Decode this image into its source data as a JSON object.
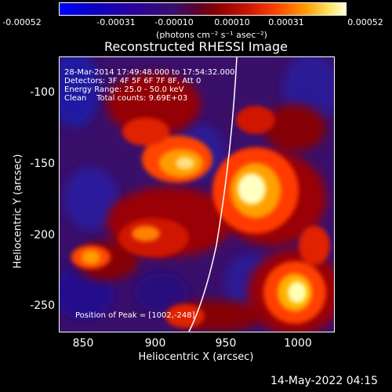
{
  "colorbar": {
    "ticks": [
      "-0.00052",
      "-0.00031",
      "-0.00010",
      "0.00010",
      "0.00031",
      "0.00052"
    ],
    "units": "(photons cm⁻² s⁻¹ asec⁻²)"
  },
  "title": "Reconstructed RHESSI Image",
  "info": {
    "time_range": "28-Mar-2014 17:49:48.000 to 17:54:32.000",
    "detectors": "Detectors: 3F 4F 5F 6F 7F 8F, Att 0",
    "energy_range": "Energy Range: 25.0 - 50.0 keV",
    "clean_counts": "Clean    Total counts: 9.69E+03",
    "peak_position": "Position of Peak = [1002,-248]"
  },
  "axes": {
    "x_label": "Heliocentric X (arcsec)",
    "y_label": "Heliocentric Y (arcsec)",
    "x_ticks": [
      "850",
      "900",
      "950",
      "1000"
    ],
    "y_ticks": [
      "-100",
      "-150",
      "-200",
      "-250"
    ]
  },
  "footer": {
    "timestamp": "14-May-2022 04:15"
  },
  "colors": {
    "colormap": [
      "#0000ff",
      "#3a0f6a",
      "#8a0000",
      "#ff3000",
      "#ff9c00",
      "#ffffc0"
    ]
  }
}
